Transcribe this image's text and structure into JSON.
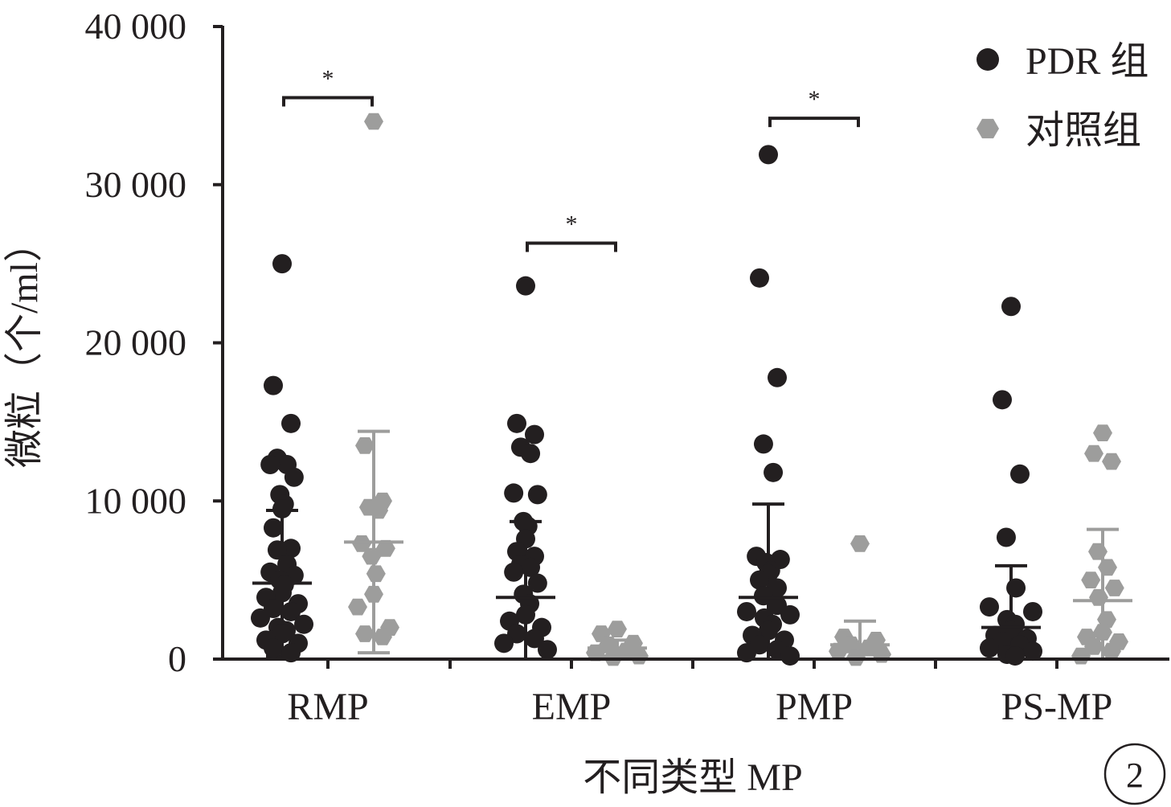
{
  "chart_data": {
    "type": "scatter",
    "title": "",
    "xlabel": "不同类型 MP",
    "ylabel": "微粒（个/ml）",
    "ylim": [
      0,
      40000
    ],
    "yticks": [
      0,
      10000,
      20000,
      30000,
      40000
    ],
    "ytick_labels": [
      "0",
      "10 000",
      "20 000",
      "30 000",
      "40 000"
    ],
    "categories": [
      "RMP",
      "EMP",
      "PMP",
      "PS-MP"
    ],
    "legend": "top-right",
    "grid": false,
    "panel_label": "2",
    "significance_marker": "*",
    "significant_categories": [
      "RMP",
      "EMP",
      "PMP"
    ],
    "series": [
      {
        "name": "PDR 组",
        "marker": "circle",
        "color": "#231f20",
        "groups": [
          {
            "category": "RMP",
            "mean": 4800,
            "sd": 4600,
            "values": [
              25000,
              17300,
              14900,
              12700,
              12300,
              12300,
              11500,
              10400,
              9800,
              9500,
              8300,
              7000,
              6900,
              6000,
              5500,
              5300,
              5000,
              4700,
              4200,
              3900,
              3500,
              3200,
              3000,
              2600,
              2200,
              2000,
              1800,
              1600,
              1200,
              1000,
              700,
              400
            ]
          },
          {
            "category": "EMP",
            "mean": 3900,
            "sd": 4800,
            "values": [
              23600,
              14900,
              14200,
              13400,
              13000,
              10500,
              10400,
              8700,
              8400,
              7600,
              6800,
              6500,
              6000,
              5800,
              5500,
              4800,
              4100,
              3500,
              2800,
              2400,
              2000,
              1600,
              1300,
              1000,
              600
            ]
          },
          {
            "category": "PMP",
            "mean": 3900,
            "sd": 5900,
            "values": [
              31900,
              24100,
              17800,
              13600,
              11800,
              6500,
              6300,
              6100,
              5600,
              5400,
              5000,
              4500,
              4000,
              3400,
              3000,
              2800,
              2600,
              2200,
              1800,
              1500,
              1200,
              900,
              600,
              400,
              200
            ]
          },
          {
            "category": "PS-MP",
            "mean": 2000,
            "sd": 3900,
            "values": [
              22300,
              16400,
              11700,
              7700,
              4500,
              3300,
              3000,
              2500,
              2200,
              1800,
              1500,
              1300,
              1100,
              900,
              700,
              500,
              300,
              200
            ]
          }
        ]
      },
      {
        "name": "对照组",
        "marker": "hexagon",
        "color": "#9d9d9c",
        "groups": [
          {
            "category": "RMP",
            "mean": 7400,
            "sd": 7000,
            "values": [
              34000,
              13500,
              10000,
              9600,
              9400,
              7300,
              7000,
              6500,
              5400,
              4100,
              3300,
              2000,
              1600,
              1400
            ]
          },
          {
            "category": "EMP",
            "mean": 700,
            "sd": 500,
            "values": [
              1900,
              1600,
              1000,
              900,
              500,
              400,
              200,
              100
            ]
          },
          {
            "category": "PMP",
            "mean": 900,
            "sd": 1500,
            "values": [
              7300,
              1400,
              1200,
              900,
              700,
              500,
              300,
              100
            ]
          },
          {
            "category": "PS-MP",
            "mean": 3700,
            "sd": 4500,
            "values": [
              14300,
              13000,
              12500,
              6800,
              5800,
              5000,
              4500,
              3900,
              2500,
              1700,
              1400,
              1100,
              800,
              500,
              200
            ]
          }
        ]
      }
    ]
  }
}
